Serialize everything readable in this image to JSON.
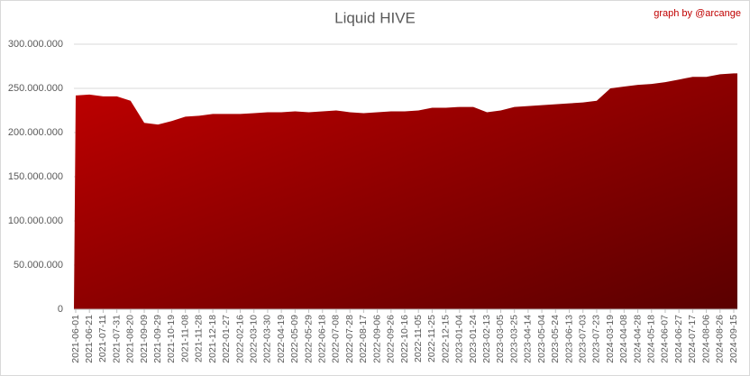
{
  "chart_data": {
    "type": "area",
    "title": "Liquid HIVE",
    "credit": "graph by @arcange",
    "categories": [
      "2021-06-01",
      "2021-06-21",
      "2021-07-11",
      "2021-07-31",
      "2021-08-20",
      "2021-09-09",
      "2021-09-29",
      "2021-10-19",
      "2021-11-08",
      "2021-11-28",
      "2021-12-18",
      "2022-01-27",
      "2022-02-16",
      "2022-03-10",
      "2022-03-30",
      "2022-04-19",
      "2022-05-09",
      "2022-05-29",
      "2022-06-18",
      "2022-07-08",
      "2022-07-28",
      "2022-08-17",
      "2022-09-06",
      "2022-09-26",
      "2022-10-16",
      "2022-11-05",
      "2022-11-25",
      "2022-12-15",
      "2023-01-04",
      "2023-01-24",
      "2023-02-13",
      "2023-03-05",
      "2023-03-25",
      "2023-04-14",
      "2023-05-04",
      "2023-05-24",
      "2023-06-13",
      "2023-07-03",
      "2023-07-23",
      "2024-03-19",
      "2024-04-08",
      "2024-04-28",
      "2024-05-18",
      "2024-06-07",
      "2024-06-27",
      "2024-07-17",
      "2024-08-06",
      "2024-08-26",
      "2024-09-15"
    ],
    "values": [
      242000000,
      243000000,
      241000000,
      241000000,
      236000000,
      211000000,
      209000000,
      213000000,
      218000000,
      219000000,
      221000000,
      221000000,
      221000000,
      222000000,
      223000000,
      223000000,
      224000000,
      223000000,
      224000000,
      225000000,
      223000000,
      222000000,
      223000000,
      224000000,
      224000000,
      225000000,
      228000000,
      228000000,
      229000000,
      229000000,
      223000000,
      225000000,
      229000000,
      230000000,
      231000000,
      232000000,
      233000000,
      234000000,
      236000000,
      250000000,
      252000000,
      254000000,
      255000000,
      257000000,
      260000000,
      263000000,
      263000000,
      266000000,
      267000000
    ],
    "color": "#c00000",
    "color_dark": "#5a0000",
    "ylim": [
      0,
      300000000
    ],
    "yticks": [
      0,
      {
        "value": 50000000,
        "label": "50.000.000"
      },
      {
        "value": 100000000,
        "label": "100.000.000"
      },
      {
        "value": 150000000,
        "label": "150.000.000"
      },
      {
        "value": 200000000,
        "label": "200.000.000"
      },
      {
        "value": 250000000,
        "label": "250.000.000"
      },
      {
        "value": 300000000,
        "label": "300.000.000"
      }
    ],
    "grid": true
  }
}
